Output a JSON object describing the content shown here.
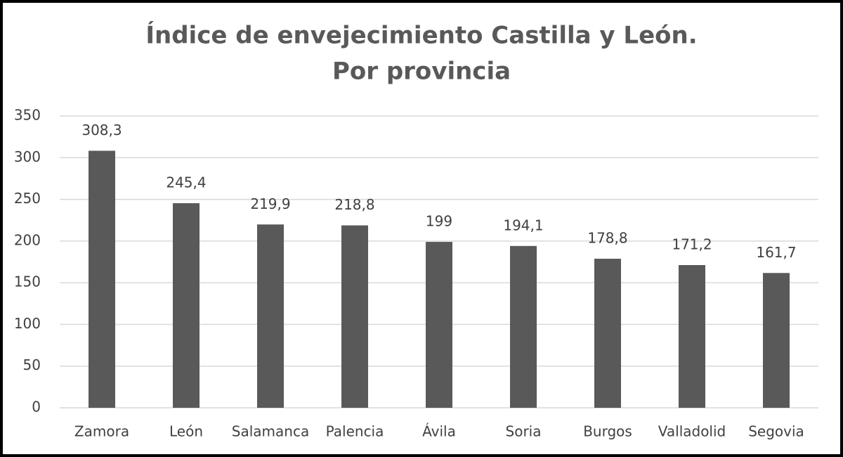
{
  "chart_data": {
    "type": "bar",
    "title": [
      "Índice de envejecimiento Castilla y León.",
      "Por provincia"
    ],
    "categories": [
      "Zamora",
      "León",
      "Salamanca",
      "Palencia",
      "Ávila",
      "Soria",
      "Burgos",
      "Valladolid",
      "Segovia"
    ],
    "values": [
      308.3,
      245.4,
      219.9,
      218.8,
      199,
      194.1,
      178.8,
      171.2,
      161.7
    ],
    "value_labels": [
      "308,3",
      "245,4",
      "219,9",
      "218,8",
      "199",
      "194,1",
      "178,8",
      "171,2",
      "161,7"
    ],
    "color": "#595959",
    "ylim": [
      0,
      350
    ],
    "yticks": [
      0,
      50,
      100,
      150,
      200,
      250,
      300,
      350
    ],
    "grid": true
  }
}
